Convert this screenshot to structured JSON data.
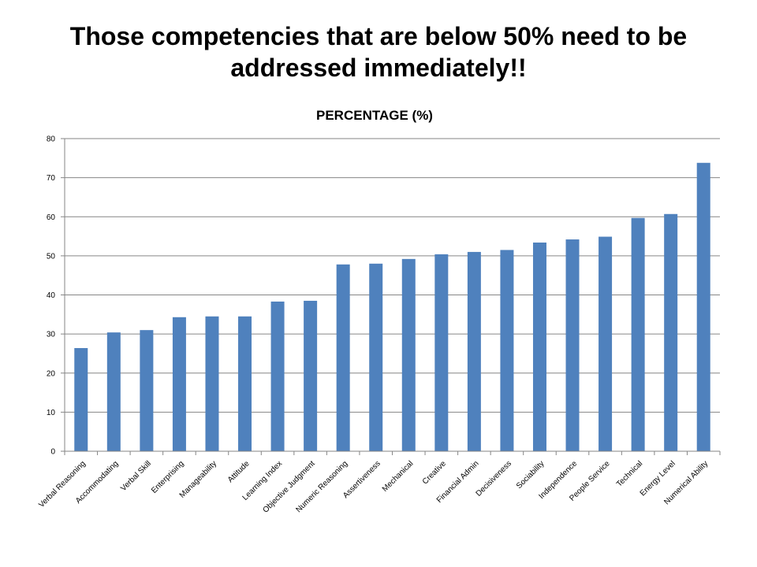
{
  "slide": {
    "heading_line1": "Those competencies that are below 50% need to be",
    "heading_line2": "addressed immediately!!"
  },
  "chart_data": {
    "type": "bar",
    "title": "PERCENTAGE (%)",
    "xlabel": "",
    "ylabel": "",
    "ylim": [
      0,
      80
    ],
    "yticks": [
      0,
      10,
      20,
      30,
      40,
      50,
      60,
      70,
      80
    ],
    "grid": true,
    "legend": "none",
    "bar_color": "#4F81BD",
    "categories": [
      "Verbal Reasoning",
      "Accommodating",
      "Verbal Skill",
      "Enterprising",
      "Manageability",
      "Attitude",
      "Learning Index",
      "Objective Judgment",
      "Numeric Reasoning",
      "Assertiveness",
      "Mechanical",
      "Creative",
      "Financial Admin",
      "Decisiveness",
      "Sociability",
      "Independence",
      "People Service",
      "Technical",
      "Energy Level",
      "Numerical Ability"
    ],
    "values": [
      26.4,
      30.4,
      31.0,
      34.3,
      34.5,
      34.5,
      38.3,
      38.5,
      47.8,
      48.0,
      49.2,
      50.4,
      51.0,
      51.5,
      53.4,
      54.2,
      54.9,
      59.7,
      60.7,
      73.8
    ]
  }
}
